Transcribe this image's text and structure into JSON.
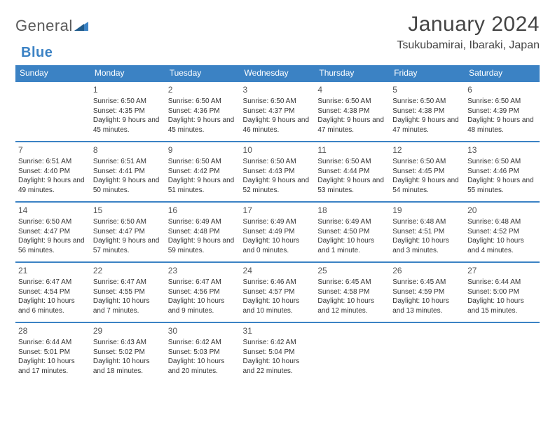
{
  "brand": {
    "name_a": "General",
    "name_b": "Blue"
  },
  "title": "January 2024",
  "location": "Tsukubamirai, Ibaraki, Japan",
  "header_color": "#3b82c4",
  "weekdays": [
    "Sunday",
    "Monday",
    "Tuesday",
    "Wednesday",
    "Thursday",
    "Friday",
    "Saturday"
  ],
  "weeks": [
    [
      null,
      {
        "d": "1",
        "sr": "6:50 AM",
        "ss": "4:35 PM",
        "dl": "9 hours and 45 minutes."
      },
      {
        "d": "2",
        "sr": "6:50 AM",
        "ss": "4:36 PM",
        "dl": "9 hours and 45 minutes."
      },
      {
        "d": "3",
        "sr": "6:50 AM",
        "ss": "4:37 PM",
        "dl": "9 hours and 46 minutes."
      },
      {
        "d": "4",
        "sr": "6:50 AM",
        "ss": "4:38 PM",
        "dl": "9 hours and 47 minutes."
      },
      {
        "d": "5",
        "sr": "6:50 AM",
        "ss": "4:38 PM",
        "dl": "9 hours and 47 minutes."
      },
      {
        "d": "6",
        "sr": "6:50 AM",
        "ss": "4:39 PM",
        "dl": "9 hours and 48 minutes."
      }
    ],
    [
      {
        "d": "7",
        "sr": "6:51 AM",
        "ss": "4:40 PM",
        "dl": "9 hours and 49 minutes."
      },
      {
        "d": "8",
        "sr": "6:51 AM",
        "ss": "4:41 PM",
        "dl": "9 hours and 50 minutes."
      },
      {
        "d": "9",
        "sr": "6:50 AM",
        "ss": "4:42 PM",
        "dl": "9 hours and 51 minutes."
      },
      {
        "d": "10",
        "sr": "6:50 AM",
        "ss": "4:43 PM",
        "dl": "9 hours and 52 minutes."
      },
      {
        "d": "11",
        "sr": "6:50 AM",
        "ss": "4:44 PM",
        "dl": "9 hours and 53 minutes."
      },
      {
        "d": "12",
        "sr": "6:50 AM",
        "ss": "4:45 PM",
        "dl": "9 hours and 54 minutes."
      },
      {
        "d": "13",
        "sr": "6:50 AM",
        "ss": "4:46 PM",
        "dl": "9 hours and 55 minutes."
      }
    ],
    [
      {
        "d": "14",
        "sr": "6:50 AM",
        "ss": "4:47 PM",
        "dl": "9 hours and 56 minutes."
      },
      {
        "d": "15",
        "sr": "6:50 AM",
        "ss": "4:47 PM",
        "dl": "9 hours and 57 minutes."
      },
      {
        "d": "16",
        "sr": "6:49 AM",
        "ss": "4:48 PM",
        "dl": "9 hours and 59 minutes."
      },
      {
        "d": "17",
        "sr": "6:49 AM",
        "ss": "4:49 PM",
        "dl": "10 hours and 0 minutes."
      },
      {
        "d": "18",
        "sr": "6:49 AM",
        "ss": "4:50 PM",
        "dl": "10 hours and 1 minute."
      },
      {
        "d": "19",
        "sr": "6:48 AM",
        "ss": "4:51 PM",
        "dl": "10 hours and 3 minutes."
      },
      {
        "d": "20",
        "sr": "6:48 AM",
        "ss": "4:52 PM",
        "dl": "10 hours and 4 minutes."
      }
    ],
    [
      {
        "d": "21",
        "sr": "6:47 AM",
        "ss": "4:54 PM",
        "dl": "10 hours and 6 minutes."
      },
      {
        "d": "22",
        "sr": "6:47 AM",
        "ss": "4:55 PM",
        "dl": "10 hours and 7 minutes."
      },
      {
        "d": "23",
        "sr": "6:47 AM",
        "ss": "4:56 PM",
        "dl": "10 hours and 9 minutes."
      },
      {
        "d": "24",
        "sr": "6:46 AM",
        "ss": "4:57 PM",
        "dl": "10 hours and 10 minutes."
      },
      {
        "d": "25",
        "sr": "6:45 AM",
        "ss": "4:58 PM",
        "dl": "10 hours and 12 minutes."
      },
      {
        "d": "26",
        "sr": "6:45 AM",
        "ss": "4:59 PM",
        "dl": "10 hours and 13 minutes."
      },
      {
        "d": "27",
        "sr": "6:44 AM",
        "ss": "5:00 PM",
        "dl": "10 hours and 15 minutes."
      }
    ],
    [
      {
        "d": "28",
        "sr": "6:44 AM",
        "ss": "5:01 PM",
        "dl": "10 hours and 17 minutes."
      },
      {
        "d": "29",
        "sr": "6:43 AM",
        "ss": "5:02 PM",
        "dl": "10 hours and 18 minutes."
      },
      {
        "d": "30",
        "sr": "6:42 AM",
        "ss": "5:03 PM",
        "dl": "10 hours and 20 minutes."
      },
      {
        "d": "31",
        "sr": "6:42 AM",
        "ss": "5:04 PM",
        "dl": "10 hours and 22 minutes."
      },
      null,
      null,
      null
    ]
  ],
  "labels": {
    "sunrise": "Sunrise:",
    "sunset": "Sunset:",
    "daylight": "Daylight:"
  }
}
